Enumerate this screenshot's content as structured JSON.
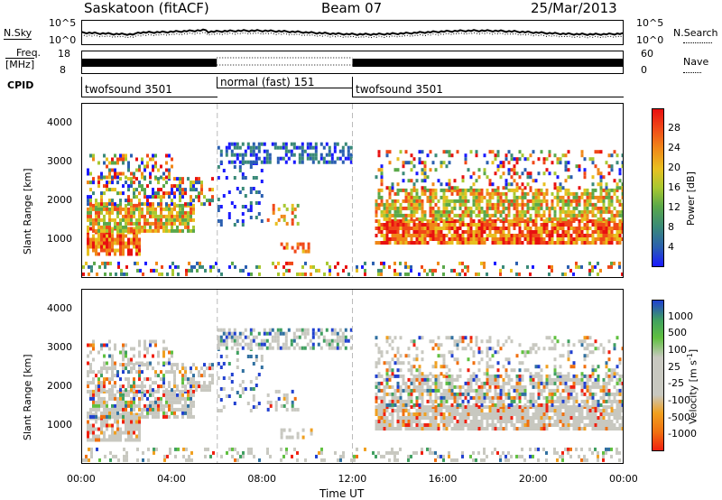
{
  "header": {
    "station": "Saskatoon (fitACF)",
    "beam": "Beam 07",
    "date": "25/Mar/2013"
  },
  "top_labels": {
    "nsky": "N.Sky",
    "nsearch": "N.Search",
    "freq": "Freq.",
    "freq_unit": "[MHz]",
    "nave": "Nave",
    "cpid": "CPID",
    "nsky_hi": "10^5",
    "nsky_lo": "10^0",
    "nsearch_hi": "10^5",
    "nsearch_lo": "10^0",
    "freq_hi": "18",
    "freq_lo": "8",
    "nave_hi": "60",
    "nave_lo": "0"
  },
  "cpid_segments": [
    {
      "label": "twofsound 3501",
      "start": 0,
      "end": 6
    },
    {
      "label": "normal (fast) 151",
      "start": 6,
      "end": 12
    },
    {
      "label": "twofsound 3501",
      "start": 12,
      "end": 24
    }
  ],
  "chart_data": [
    {
      "type": "heatmap",
      "ylabel": "Slant Range [km]",
      "ylim": [
        0,
        4500
      ],
      "yticks": [
        "1000",
        "2000",
        "3000",
        "4000"
      ],
      "colorbar_label": "Power [dB]",
      "colorbar_ticks": [
        "4",
        "8",
        "12",
        "16",
        "20",
        "24",
        "28"
      ],
      "colors": [
        "#1a1aff",
        "#2a5fb0",
        "#3a8a78",
        "#5aa84a",
        "#a8c830",
        "#e8c020",
        "#f08818",
        "#f04818",
        "#e81010"
      ]
    },
    {
      "type": "heatmap",
      "ylabel": "Slant Range [km]",
      "ylim": [
        0,
        4500
      ],
      "yticks": [
        "1000",
        "2000",
        "3000",
        "4000"
      ],
      "colorbar_label": "Velocity [m s",
      "colorbar_label_sup": "-1",
      "colorbar_label_end": "]",
      "colorbar_ticks": [
        "1000",
        "500",
        "100",
        "25",
        "-25",
        "-100",
        "-500",
        "-1000"
      ],
      "colors": [
        "#2040d0",
        "#3070a0",
        "#40a060",
        "#60c040",
        "#c8c8c0",
        "#c8c8c0",
        "#f0a020",
        "#f07010",
        "#f02010"
      ]
    }
  ],
  "xaxis": {
    "ticks": [
      "00:00",
      "04:00",
      "08:00",
      "12:00",
      "16:00",
      "20:00",
      "00:00"
    ],
    "label": "Time UT"
  }
}
